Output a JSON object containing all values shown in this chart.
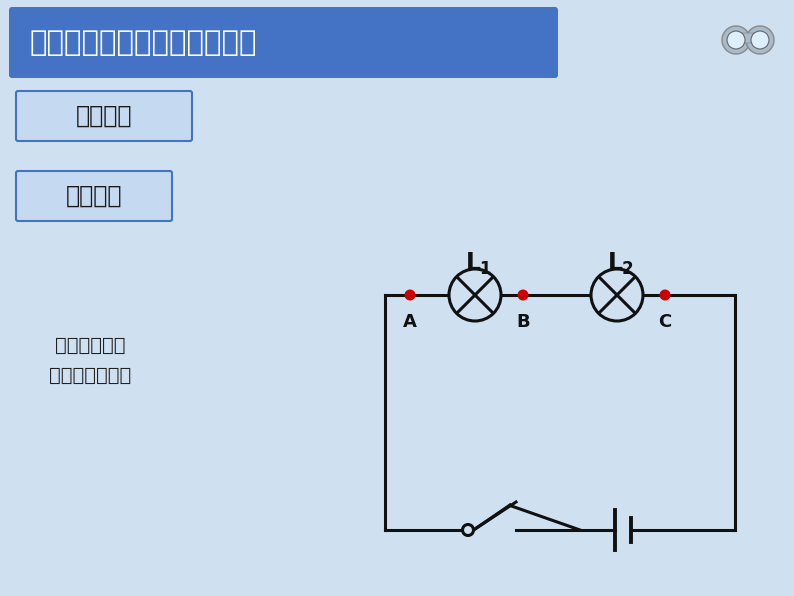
{
  "bg_color": "#cfe0f0",
  "title_text": "一、探究串联电路电压的规律",
  "title_bg": "#4472c4",
  "title_text_color": "#ffffff",
  "box1_text": "猜想假设",
  "box2_text": "设计实验",
  "box_bg": "#c5d9f1",
  "box_border": "#4472c4",
  "body_text1": "设计实验电路",
  "body_text2": "并画出电路图。",
  "circuit_color": "#111111",
  "dot_color": "#cc0000",
  "label_L1": "L",
  "label_L1_sub": "1",
  "label_L2": "L",
  "label_L2_sub": "2",
  "label_A": "A",
  "label_B": "B",
  "label_C": "C",
  "figw": 7.94,
  "figh": 5.96,
  "dpi": 100
}
